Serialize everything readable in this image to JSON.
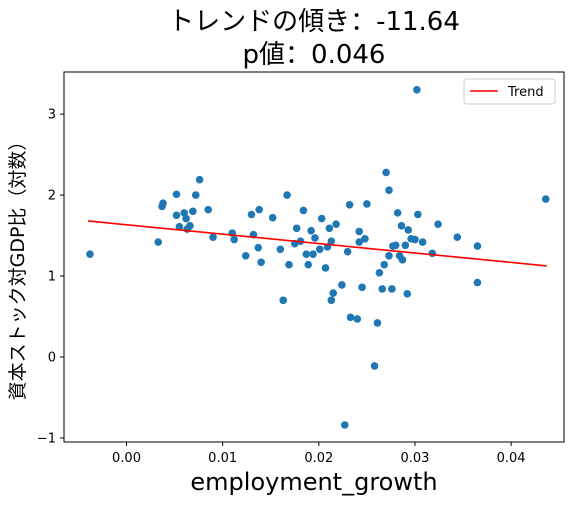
{
  "chart_data": {
    "type": "scatter",
    "title_line1": "トレンドの傾き：-11.64",
    "title_line2": "p値：0.046",
    "xlabel": "employment_growth",
    "ylabel": "資本ストック対GDP比（対数）",
    "xlim": [
      -0.0065,
      0.0455
    ],
    "ylim": [
      -1.05,
      3.52
    ],
    "xticks": [
      0.0,
      0.01,
      0.02,
      0.03,
      0.04
    ],
    "xtick_labels": [
      "0.00",
      "0.01",
      "0.02",
      "0.03",
      "0.04"
    ],
    "yticks": [
      -1,
      0,
      1,
      2,
      3
    ],
    "ytick_labels": [
      "−1",
      "0",
      "1",
      "2",
      "3"
    ],
    "grid": false,
    "legend": {
      "position": "top-right",
      "entries": [
        "Trend"
      ]
    },
    "colors": {
      "points": "#1f77b4",
      "trend": "#ff0000"
    },
    "trend": {
      "x": [
        -0.004,
        0.0437
      ],
      "y": [
        1.68,
        1.125
      ]
    },
    "points": [
      [
        -0.0038,
        1.27
      ],
      [
        0.0033,
        1.42
      ],
      [
        0.0037,
        1.86
      ],
      [
        0.0038,
        1.9
      ],
      [
        0.0052,
        2.01
      ],
      [
        0.0052,
        1.75
      ],
      [
        0.0055,
        1.61
      ],
      [
        0.006,
        1.78
      ],
      [
        0.0062,
        1.71
      ],
      [
        0.0063,
        1.58
      ],
      [
        0.0066,
        1.62
      ],
      [
        0.0069,
        1.8
      ],
      [
        0.0072,
        2.0
      ],
      [
        0.0076,
        2.19
      ],
      [
        0.0085,
        1.82
      ],
      [
        0.009,
        1.48
      ],
      [
        0.011,
        1.53
      ],
      [
        0.0112,
        1.45
      ],
      [
        0.0124,
        1.25
      ],
      [
        0.013,
        1.76
      ],
      [
        0.0132,
        1.51
      ],
      [
        0.0137,
        1.35
      ],
      [
        0.0138,
        1.82
      ],
      [
        0.014,
        1.17
      ],
      [
        0.0152,
        1.72
      ],
      [
        0.016,
        1.33
      ],
      [
        0.0163,
        0.7
      ],
      [
        0.0167,
        2.0
      ],
      [
        0.0169,
        1.14
      ],
      [
        0.0175,
        1.4
      ],
      [
        0.0177,
        1.59
      ],
      [
        0.0181,
        1.43
      ],
      [
        0.0184,
        1.81
      ],
      [
        0.0187,
        1.27
      ],
      [
        0.0189,
        1.14
      ],
      [
        0.0192,
        1.56
      ],
      [
        0.0194,
        1.27
      ],
      [
        0.0196,
        1.47
      ],
      [
        0.0201,
        1.33
      ],
      [
        0.0203,
        1.71
      ],
      [
        0.0207,
        1.1
      ],
      [
        0.0209,
        1.36
      ],
      [
        0.0211,
        1.59
      ],
      [
        0.0213,
        1.43
      ],
      [
        0.0213,
        0.7
      ],
      [
        0.0215,
        0.79
      ],
      [
        0.0218,
        1.64
      ],
      [
        0.0224,
        0.89
      ],
      [
        0.0227,
        -0.84
      ],
      [
        0.023,
        1.3
      ],
      [
        0.0232,
        1.88
      ],
      [
        0.0233,
        0.49
      ],
      [
        0.024,
        0.47
      ],
      [
        0.0242,
        1.55
      ],
      [
        0.0242,
        1.42
      ],
      [
        0.0245,
        0.86
      ],
      [
        0.0248,
        1.46
      ],
      [
        0.025,
        1.89
      ],
      [
        0.0258,
        -0.11
      ],
      [
        0.0261,
        0.42
      ],
      [
        0.0263,
        1.04
      ],
      [
        0.0266,
        0.84
      ],
      [
        0.0268,
        1.14
      ],
      [
        0.027,
        2.28
      ],
      [
        0.0273,
        2.06
      ],
      [
        0.0273,
        1.25
      ],
      [
        0.0276,
        0.84
      ],
      [
        0.0277,
        1.37
      ],
      [
        0.028,
        1.38
      ],
      [
        0.0282,
        1.78
      ],
      [
        0.0284,
        1.25
      ],
      [
        0.0286,
        1.62
      ],
      [
        0.0287,
        1.2
      ],
      [
        0.029,
        1.38
      ],
      [
        0.0292,
        0.78
      ],
      [
        0.0293,
        1.57
      ],
      [
        0.0296,
        1.46
      ],
      [
        0.03,
        1.45
      ],
      [
        0.0302,
        3.3
      ],
      [
        0.0303,
        1.76
      ],
      [
        0.0308,
        1.42
      ],
      [
        0.0318,
        1.28
      ],
      [
        0.0324,
        1.64
      ],
      [
        0.0344,
        1.48
      ],
      [
        0.0365,
        1.37
      ],
      [
        0.0365,
        0.92
      ],
      [
        0.0436,
        1.95
      ]
    ]
  }
}
